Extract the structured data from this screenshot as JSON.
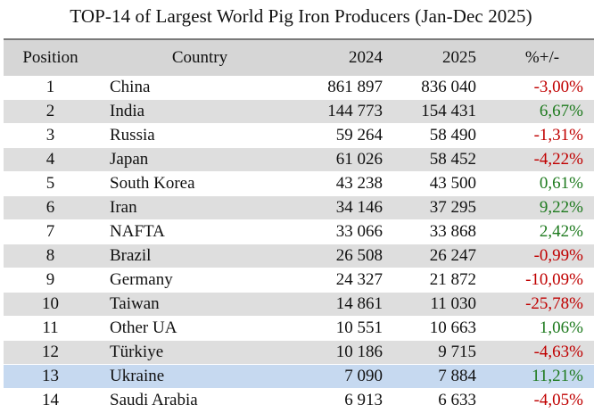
{
  "title": "TOP-14 of Largest World Pig Iron Producers (Jan-Dec 2025)",
  "headers": {
    "position": "Position",
    "country": "Country",
    "y2024": "2024",
    "y2025": "2025",
    "change": "%+/-"
  },
  "colors": {
    "negative": "#c00000",
    "positive": "#1e7a1e",
    "highlight": "#c6d9f0",
    "stripe": "#dedede"
  },
  "rows": [
    {
      "position": "1",
      "country": "China",
      "y2024": "861 897",
      "y2025": "836 040",
      "change": "-3,00%",
      "sign": "neg",
      "style": "plain"
    },
    {
      "position": "2",
      "country": "India",
      "y2024": "144 773",
      "y2025": "154 431",
      "change": "6,67%",
      "sign": "pos",
      "style": "alt"
    },
    {
      "position": "3",
      "country": "Russia",
      "y2024": "59 264",
      "y2025": "58 490",
      "change": "-1,31%",
      "sign": "neg",
      "style": "plain"
    },
    {
      "position": "4",
      "country": "Japan",
      "y2024": "61 026",
      "y2025": "58 452",
      "change": "-4,22%",
      "sign": "neg",
      "style": "alt"
    },
    {
      "position": "5",
      "country": "South Korea",
      "y2024": "43 238",
      "y2025": "43 500",
      "change": "0,61%",
      "sign": "pos",
      "style": "plain"
    },
    {
      "position": "6",
      "country": "Iran",
      "y2024": "34 146",
      "y2025": "37 295",
      "change": "9,22%",
      "sign": "pos",
      "style": "alt"
    },
    {
      "position": "7",
      "country": "NAFTA",
      "y2024": "33 066",
      "y2025": "33 868",
      "change": "2,42%",
      "sign": "pos",
      "style": "plain"
    },
    {
      "position": "8",
      "country": "Brazil",
      "y2024": "26 508",
      "y2025": "26 247",
      "change": "-0,99%",
      "sign": "neg",
      "style": "alt"
    },
    {
      "position": "9",
      "country": "Germany",
      "y2024": "24 327",
      "y2025": "21 872",
      "change": "-10,09%",
      "sign": "neg",
      "style": "plain"
    },
    {
      "position": "10",
      "country": "Taiwan",
      "y2024": "14 861",
      "y2025": "11 030",
      "change": "-25,78%",
      "sign": "neg",
      "style": "alt"
    },
    {
      "position": "11",
      "country": "Other UA",
      "y2024": "10 551",
      "y2025": "10 663",
      "change": "1,06%",
      "sign": "pos",
      "style": "plain"
    },
    {
      "position": "12",
      "country": "Türkiye",
      "y2024": "10 186",
      "y2025": "9 715",
      "change": "-4,63%",
      "sign": "neg",
      "style": "alt"
    },
    {
      "position": "13",
      "country": "Ukraine",
      "y2024": "7 090",
      "y2025": "7 884",
      "change": "11,21%",
      "sign": "pos",
      "style": "hl"
    },
    {
      "position": "14",
      "country": "Saudi Arabia",
      "y2024": "6 913",
      "y2025": "6 633",
      "change": "-4,05%",
      "sign": "neg",
      "style": "plain"
    }
  ]
}
